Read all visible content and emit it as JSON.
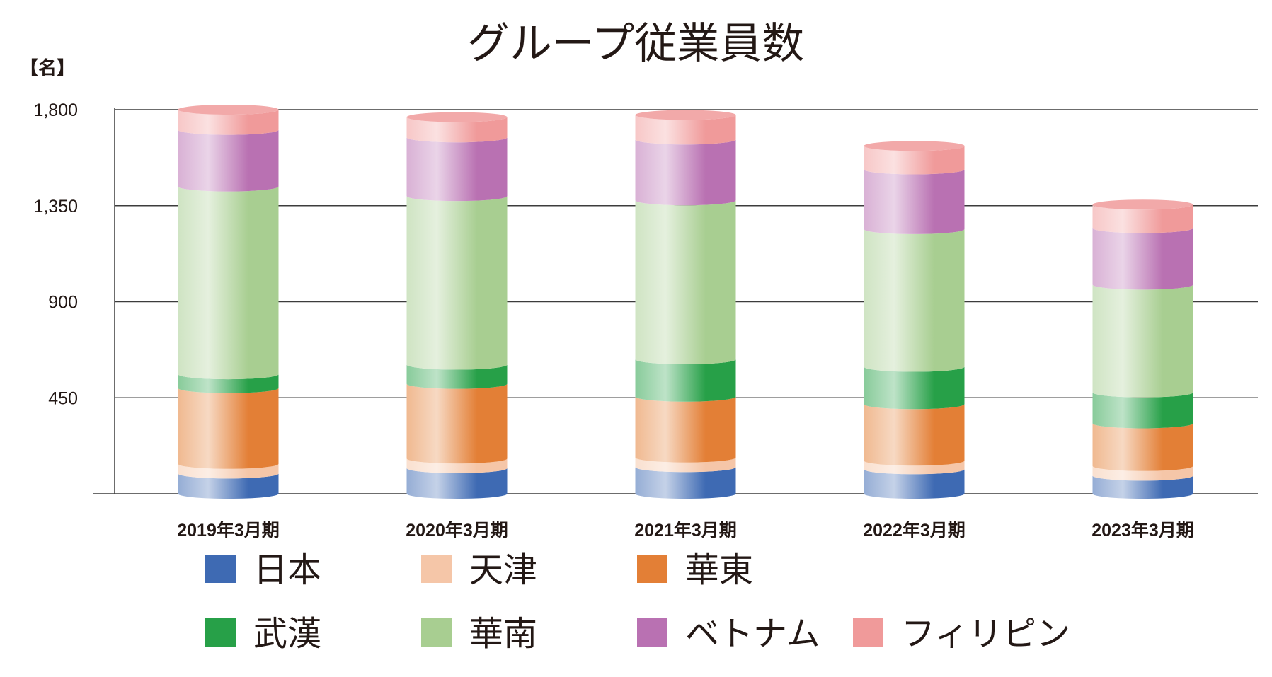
{
  "chart_data": {
    "type": "bar",
    "stacked": true,
    "title": "グループ従業員数",
    "unit_label": "【名】",
    "ylim": [
      0,
      1800
    ],
    "yticks": [
      "1,800",
      "1,350",
      "900",
      "450"
    ],
    "ytick_values": [
      1800,
      1350,
      900,
      450
    ],
    "grid": true,
    "categories": [
      "2019年3月期",
      "2020年3月期",
      "2021年3月期",
      "2022年3月期",
      "2023年3月期"
    ],
    "series": [
      {
        "name": "日本",
        "color": "#3E6AB3",
        "values": [
          95,
          120,
          125,
          115,
          85
        ]
      },
      {
        "name": "天津",
        "color": "#F5C6A8",
        "values": [
          45,
          45,
          45,
          40,
          45
        ]
      },
      {
        "name": "華東",
        "color": "#E37F36",
        "values": [
          355,
          350,
          285,
          265,
          200
        ]
      },
      {
        "name": "武漢",
        "color": "#27A048",
        "values": [
          65,
          90,
          175,
          175,
          145
        ]
      },
      {
        "name": "華南",
        "color": "#A8CE91",
        "values": [
          880,
          790,
          745,
          645,
          505
        ]
      },
      {
        "name": "ベトナム",
        "color": "#B971B2",
        "values": [
          265,
          275,
          285,
          280,
          265
        ]
      },
      {
        "name": "フィリピン",
        "color": "#F09A9A",
        "values": [
          95,
          95,
          115,
          110,
          110
        ]
      }
    ],
    "legend_position": "bottom"
  }
}
